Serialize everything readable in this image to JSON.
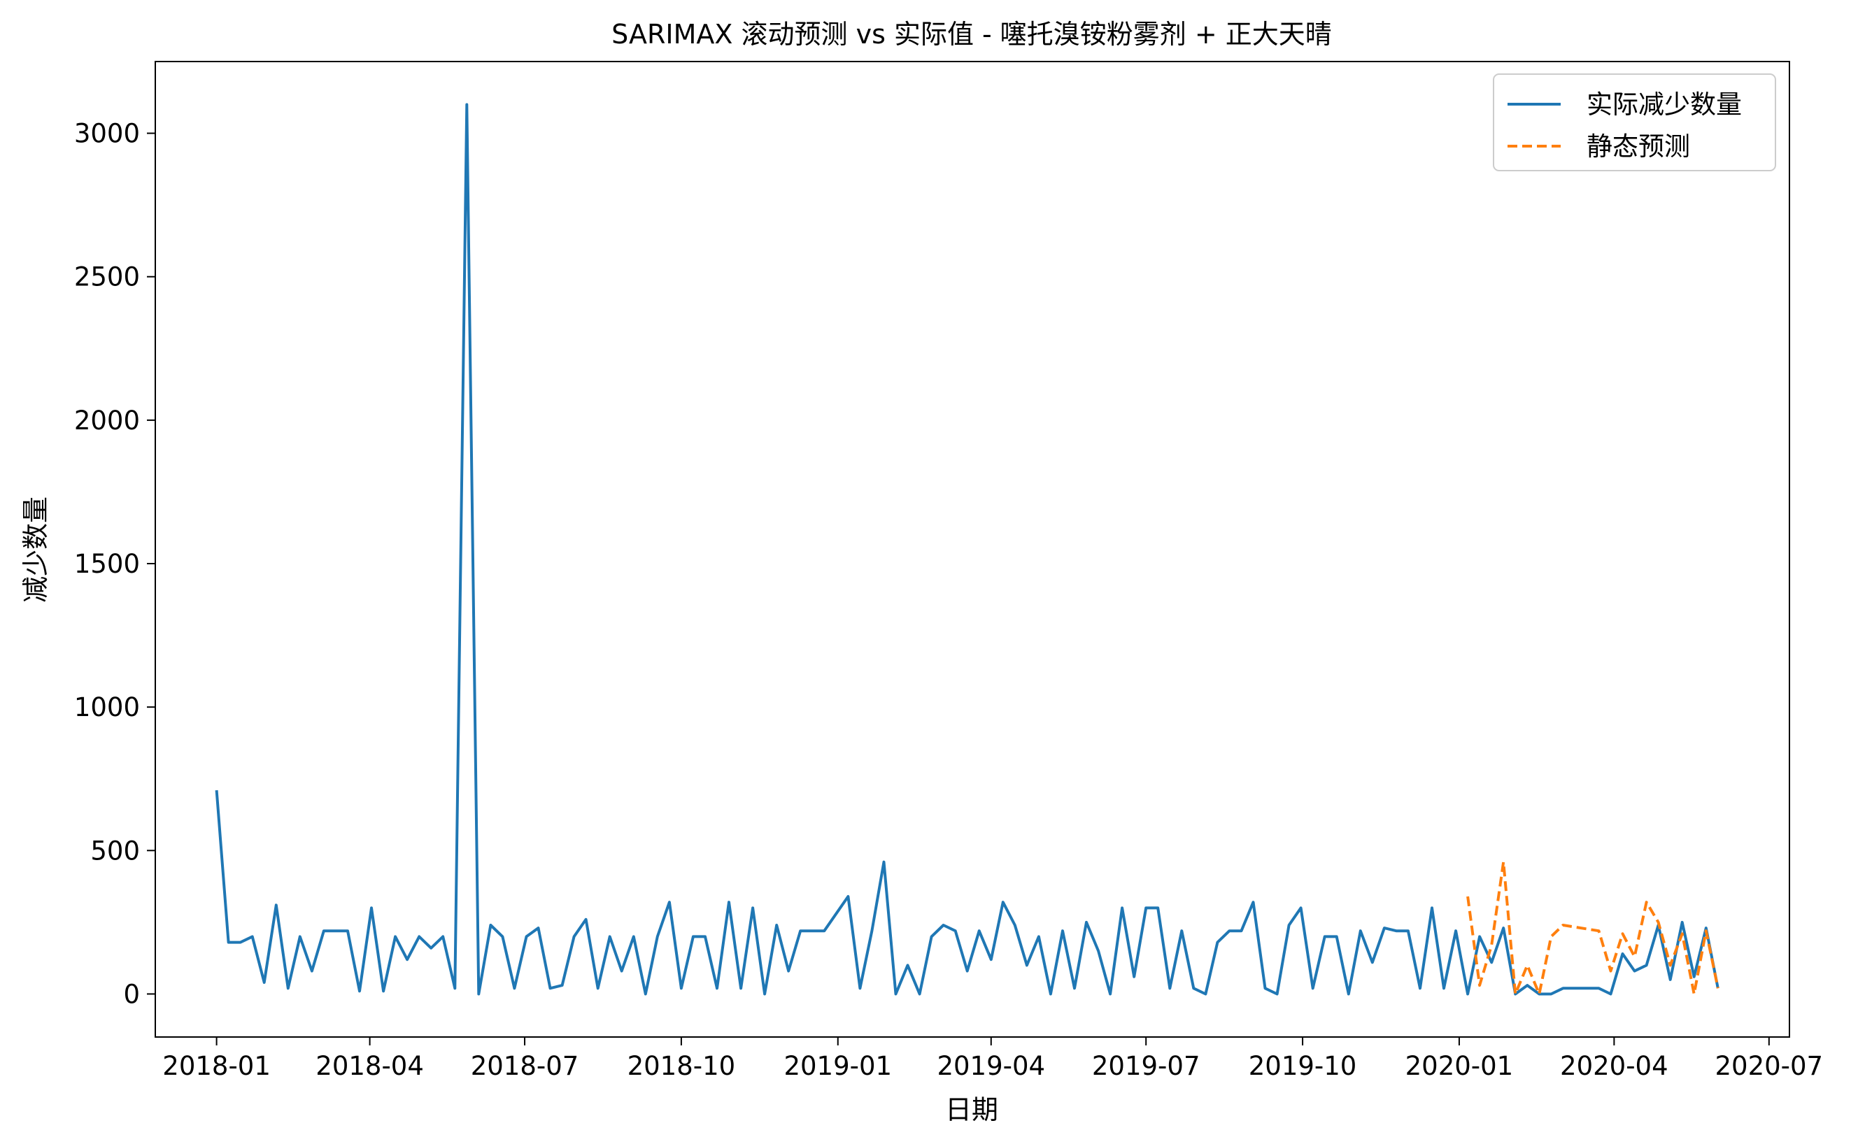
{
  "chart_data": {
    "type": "line",
    "title": "SARIMAX 滚动预测 vs 实际值 - 噻托溴铵粉雾剂 + 正大天晴",
    "xlabel": "日期",
    "ylabel": "减少数量",
    "x_ticks": [
      "2018-01",
      "2018-04",
      "2018-07",
      "2018-10",
      "2019-01",
      "2019-04",
      "2019-07",
      "2019-10",
      "2020-01",
      "2020-04",
      "2020-07"
    ],
    "y_ticks": [
      "0",
      "500",
      "1000",
      "1500",
      "2000",
      "2500",
      "3000"
    ],
    "ylim": [
      -150,
      3250
    ],
    "xlim": [
      "2017-11-26",
      "2020-07-13"
    ],
    "legend_position": "upper right",
    "grid": false,
    "series": [
      {
        "name": "实际减少数量",
        "color": "#1f77b4",
        "style": "solid",
        "points": [
          [
            "2018-01-01",
            710
          ],
          [
            "2018-01-08",
            180
          ],
          [
            "2018-01-15",
            180
          ],
          [
            "2018-01-22",
            200
          ],
          [
            "2018-01-29",
            40
          ],
          [
            "2018-02-05",
            310
          ],
          [
            "2018-02-12",
            20
          ],
          [
            "2018-02-19",
            200
          ],
          [
            "2018-02-26",
            80
          ],
          [
            "2018-03-05",
            220
          ],
          [
            "2018-03-12",
            220
          ],
          [
            "2018-03-19",
            220
          ],
          [
            "2018-03-26",
            10
          ],
          [
            "2018-04-02",
            300
          ],
          [
            "2018-04-09",
            10
          ],
          [
            "2018-04-16",
            200
          ],
          [
            "2018-04-23",
            120
          ],
          [
            "2018-04-30",
            200
          ],
          [
            "2018-05-07",
            160
          ],
          [
            "2018-05-14",
            200
          ],
          [
            "2018-05-21",
            20
          ],
          [
            "2018-05-28",
            3100
          ],
          [
            "2018-06-04",
            0
          ],
          [
            "2018-06-11",
            240
          ],
          [
            "2018-06-18",
            200
          ],
          [
            "2018-06-25",
            20
          ],
          [
            "2018-07-02",
            200
          ],
          [
            "2018-07-09",
            230
          ],
          [
            "2018-07-16",
            20
          ],
          [
            "2018-07-23",
            30
          ],
          [
            "2018-07-30",
            200
          ],
          [
            "2018-08-06",
            260
          ],
          [
            "2018-08-13",
            20
          ],
          [
            "2018-08-20",
            200
          ],
          [
            "2018-08-27",
            80
          ],
          [
            "2018-09-03",
            200
          ],
          [
            "2018-09-10",
            0
          ],
          [
            "2018-09-17",
            200
          ],
          [
            "2018-09-24",
            320
          ],
          [
            "2018-10-01",
            20
          ],
          [
            "2018-10-08",
            200
          ],
          [
            "2018-10-15",
            200
          ],
          [
            "2018-10-22",
            20
          ],
          [
            "2018-10-29",
            320
          ],
          [
            "2018-11-05",
            20
          ],
          [
            "2018-11-12",
            300
          ],
          [
            "2018-11-19",
            0
          ],
          [
            "2018-11-26",
            240
          ],
          [
            "2018-12-03",
            80
          ],
          [
            "2018-12-10",
            220
          ],
          [
            "2018-12-17",
            220
          ],
          [
            "2018-12-24",
            220
          ],
          [
            "2019-01-07",
            340
          ],
          [
            "2019-01-14",
            20
          ],
          [
            "2019-01-21",
            220
          ],
          [
            "2019-01-28",
            460
          ],
          [
            "2019-02-04",
            0
          ],
          [
            "2019-02-11",
            100
          ],
          [
            "2019-02-18",
            0
          ],
          [
            "2019-02-25",
            200
          ],
          [
            "2019-03-04",
            240
          ],
          [
            "2019-03-11",
            220
          ],
          [
            "2019-03-18",
            80
          ],
          [
            "2019-03-25",
            220
          ],
          [
            "2019-04-01",
            120
          ],
          [
            "2019-04-08",
            320
          ],
          [
            "2019-04-15",
            240
          ],
          [
            "2019-04-22",
            100
          ],
          [
            "2019-04-29",
            200
          ],
          [
            "2019-05-06",
            0
          ],
          [
            "2019-05-13",
            220
          ],
          [
            "2019-05-20",
            20
          ],
          [
            "2019-05-27",
            250
          ],
          [
            "2019-06-03",
            150
          ],
          [
            "2019-06-10",
            0
          ],
          [
            "2019-06-17",
            300
          ],
          [
            "2019-06-24",
            60
          ],
          [
            "2019-07-01",
            300
          ],
          [
            "2019-07-08",
            300
          ],
          [
            "2019-07-15",
            20
          ],
          [
            "2019-07-22",
            220
          ],
          [
            "2019-07-29",
            20
          ],
          [
            "2019-08-05",
            0
          ],
          [
            "2019-08-12",
            180
          ],
          [
            "2019-08-19",
            220
          ],
          [
            "2019-08-26",
            220
          ],
          [
            "2019-09-02",
            320
          ],
          [
            "2019-09-09",
            20
          ],
          [
            "2019-09-16",
            0
          ],
          [
            "2019-09-23",
            240
          ],
          [
            "2019-09-30",
            300
          ],
          [
            "2019-10-07",
            20
          ],
          [
            "2019-10-14",
            200
          ],
          [
            "2019-10-21",
            200
          ],
          [
            "2019-10-28",
            0
          ],
          [
            "2019-11-04",
            220
          ],
          [
            "2019-11-11",
            110
          ],
          [
            "2019-11-18",
            230
          ],
          [
            "2019-11-25",
            220
          ],
          [
            "2019-12-02",
            220
          ],
          [
            "2019-12-09",
            20
          ],
          [
            "2019-12-16",
            300
          ],
          [
            "2019-12-23",
            20
          ],
          [
            "2019-12-30",
            220
          ],
          [
            "2020-01-06",
            0
          ],
          [
            "2020-01-13",
            200
          ],
          [
            "2020-01-20",
            110
          ],
          [
            "2020-01-27",
            230
          ],
          [
            "2020-02-03",
            0
          ],
          [
            "2020-02-10",
            30
          ],
          [
            "2020-02-17",
            0
          ],
          [
            "2020-02-24",
            0
          ],
          [
            "2020-03-02",
            20
          ],
          [
            "2020-03-09",
            20
          ],
          [
            "2020-03-16",
            20
          ],
          [
            "2020-03-23",
            20
          ],
          [
            "2020-03-30",
            0
          ],
          [
            "2020-04-06",
            140
          ],
          [
            "2020-04-13",
            80
          ],
          [
            "2020-04-20",
            100
          ],
          [
            "2020-04-27",
            240
          ],
          [
            "2020-05-04",
            50
          ],
          [
            "2020-05-11",
            250
          ],
          [
            "2020-05-18",
            60
          ],
          [
            "2020-05-25",
            230
          ],
          [
            "2020-06-01",
            20
          ]
        ]
      },
      {
        "name": "静态预测",
        "color": "#ff7f0e",
        "style": "dashed",
        "points": [
          [
            "2020-01-06",
            340
          ],
          [
            "2020-01-13",
            30
          ],
          [
            "2020-01-20",
            170
          ],
          [
            "2020-01-27",
            460
          ],
          [
            "2020-02-03",
            0
          ],
          [
            "2020-02-10",
            100
          ],
          [
            "2020-02-17",
            0
          ],
          [
            "2020-02-24",
            200
          ],
          [
            "2020-03-02",
            240
          ],
          [
            "2020-03-23",
            220
          ],
          [
            "2020-03-30",
            80
          ],
          [
            "2020-04-06",
            210
          ],
          [
            "2020-04-13",
            130
          ],
          [
            "2020-04-20",
            320
          ],
          [
            "2020-04-27",
            250
          ],
          [
            "2020-05-04",
            100
          ],
          [
            "2020-05-11",
            210
          ],
          [
            "2020-05-18",
            0
          ],
          [
            "2020-05-25",
            220
          ],
          [
            "2020-06-01",
            20
          ]
        ]
      }
    ]
  }
}
